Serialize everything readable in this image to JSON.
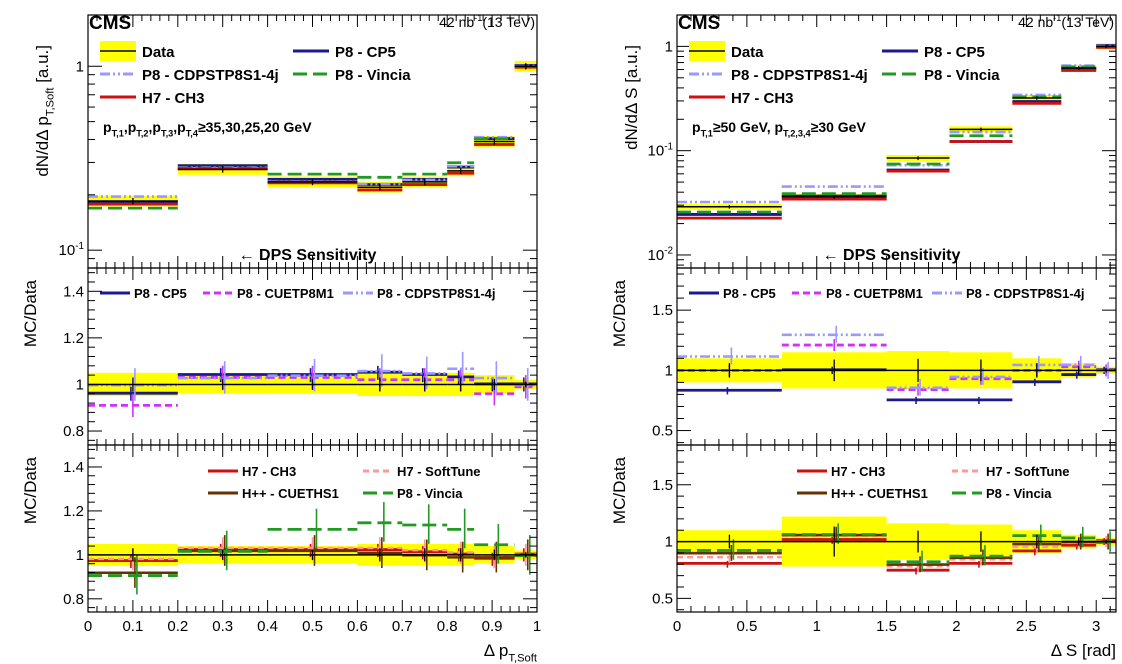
{
  "figure": {
    "colors": {
      "data_band": "#ffff00",
      "data_line": "#000000",
      "P8 - CP5": "#1a1a8c",
      "P8 - CUETP8M1": "#cc33ff",
      "P8 - CDPSTP8S1-4j": "#9999ff",
      "P8 - Vincia": "#229922",
      "H7 - CH3": "#cc1111",
      "H7 - SoftTune": "#ff9999",
      "H++ - CUETHS1": "#663300"
    }
  },
  "chart_data": [
    {
      "type": "step",
      "id": "left",
      "cms_label": "CMS",
      "lumi": "42 nb",
      "lumi_sup": "-1",
      "lumi_energy": "(13 TeV)",
      "selection_text": "p_{T,1},p_{T,2},p_{T,3},p_{T,4}≥35,30,25,20 GeV",
      "sensitivity_text": "← DPS Sensitivity",
      "xlabel": "Δ p_{T,Soft}",
      "xlim": [
        0,
        1
      ],
      "xticks": [
        "0",
        "0.1",
        "0.2",
        "0.3",
        "0.4",
        "0.5",
        "0.6",
        "0.7",
        "0.8",
        "0.9",
        "1"
      ],
      "bins": [
        0,
        0.2,
        0.4,
        0.6,
        0.7,
        0.8,
        0.86,
        0.95,
        1.0
      ],
      "main": {
        "ylabel": "dN/dΔ p_{T,Soft} [a.u.]",
        "yscale": "log",
        "ylim": [
          0.08,
          1.9
        ],
        "ytick_labels": [
          "10^{-1}",
          "1"
        ],
        "legend": [
          "Data",
          "P8 - CP5",
          "P8 - CDPSTP8S1-4j",
          "P8 - Vincia",
          "H7 - CH3"
        ],
        "series": [
          {
            "name": "Data",
            "values": [
              0.185,
              0.275,
              0.235,
              0.22,
              0.235,
              0.27,
              0.39,
              1.0
            ]
          },
          {
            "name": "P8 - CP5",
            "values": [
              0.18,
              0.285,
              0.24,
              0.225,
              0.24,
              0.28,
              0.4,
              1.0
            ]
          },
          {
            "name": "P8 - CDPSTP8S1-4j",
            "values": [
              0.195,
              0.28,
              0.235,
              0.228,
              0.24,
              0.285,
              0.41,
              1.0
            ]
          },
          {
            "name": "P8 - Vincia",
            "values": [
              0.17,
              0.28,
              0.26,
              0.25,
              0.26,
              0.3,
              0.405,
              1.0
            ]
          },
          {
            "name": "H7 - CH3",
            "values": [
              0.18,
              0.28,
              0.235,
              0.215,
              0.23,
              0.265,
              0.38,
              1.0
            ]
          }
        ]
      },
      "ratio1": {
        "ylabel": "MC/Data",
        "ylim": [
          0.74,
          1.5
        ],
        "ytick_labels": [
          "0.8",
          "1",
          "1.2",
          "1.4"
        ],
        "data_unc": [
          0.05,
          0.04,
          0.04,
          0.05,
          0.05,
          0.05,
          0.04,
          0.02
        ],
        "legend": [
          "P8 - CP5",
          "P8 - CUETP8M1",
          "P8 - CDPSTP8S1-4j"
        ],
        "series": [
          {
            "name": "P8 - CP5",
            "values": [
              0.96,
              1.04,
              1.04,
              1.05,
              1.04,
              1.03,
              1.0,
              1.0
            ]
          },
          {
            "name": "P8 - CUETP8M1",
            "values": [
              0.91,
              1.03,
              1.03,
              1.02,
              1.02,
              1.02,
              0.96,
              0.99
            ]
          },
          {
            "name": "P8 - CDPSTP8S1-4j",
            "values": [
              1.0,
              1.03,
              1.04,
              1.06,
              1.05,
              1.07,
              1.03,
              1.0
            ]
          }
        ]
      },
      "ratio2": {
        "ylabel": "MC/Data",
        "ylim": [
          0.74,
          1.5
        ],
        "ytick_labels": [
          "0.8",
          "1",
          "1.2",
          "1.4"
        ],
        "data_unc": [
          0.05,
          0.04,
          0.04,
          0.05,
          0.05,
          0.05,
          0.04,
          0.02
        ],
        "legend": [
          "H7 - CH3",
          "H7 - SoftTune",
          "H++ - CUETHS1",
          "P8 - Vincia"
        ],
        "series": [
          {
            "name": "H7 - CH3",
            "values": [
              0.97,
              1.02,
              1.02,
              1.02,
              1.01,
              1.0,
              0.98,
              1.0
            ]
          },
          {
            "name": "H7 - SoftTune",
            "values": [
              0.98,
              1.03,
              1.03,
              1.03,
              1.02,
              1.01,
              0.99,
              1.0
            ]
          },
          {
            "name": "H++ - CUETHS1",
            "values": [
              0.92,
              1.02,
              1.02,
              1.01,
              1.0,
              0.99,
              0.99,
              1.0
            ]
          },
          {
            "name": "P8 - Vincia",
            "values": [
              0.91,
              1.02,
              1.12,
              1.15,
              1.14,
              1.12,
              1.05,
              1.0
            ]
          }
        ]
      }
    },
    {
      "type": "step",
      "id": "right",
      "cms_label": "CMS",
      "lumi": "42 nb",
      "lumi_sup": "-1",
      "lumi_energy": "(13 TeV)",
      "selection_text": "p_{T,1}≥50 GeV, p_{T,2,3,4}≥30 GeV",
      "sensitivity_text": "← DPS Sensitivity",
      "xlabel": "Δ S [rad]",
      "xlim": [
        0,
        3.1416
      ],
      "xticks_values": [
        0,
        0.5,
        1,
        1.5,
        2,
        2.5,
        3
      ],
      "xticks": [
        "0",
        "0.5",
        "1",
        "1.5",
        "2",
        "2.5",
        "3"
      ],
      "bins": [
        0,
        0.75,
        1.5,
        1.95,
        2.4,
        2.75,
        3.0,
        3.1416
      ],
      "main": {
        "ylabel": "dN/dΔ S [a.u.]",
        "yscale": "log",
        "ylim": [
          0.0075,
          2.0
        ],
        "ytick_labels": [
          "10^{-2}",
          "10^{-1}",
          "1"
        ],
        "legend": [
          "Data",
          "P8 - CP5",
          "P8 - CDPSTP8S1-4j",
          "P8 - Vincia",
          "H7 - CH3"
        ],
        "series": [
          {
            "name": "Data",
            "values": [
              0.029,
              0.036,
              0.085,
              0.16,
              0.32,
              0.62,
              1.0
            ]
          },
          {
            "name": "P8 - CP5",
            "values": [
              0.024,
              0.036,
              0.064,
              0.12,
              0.29,
              0.6,
              1.0
            ]
          },
          {
            "name": "P8 - CDPSTP8S1-4j",
            "values": [
              0.032,
              0.045,
              0.072,
              0.15,
              0.34,
              0.65,
              1.0
            ]
          },
          {
            "name": "P8 - Vincia",
            "values": [
              0.026,
              0.039,
              0.075,
              0.14,
              0.33,
              0.64,
              1.0
            ]
          },
          {
            "name": "H7 - CH3",
            "values": [
              0.023,
              0.035,
              0.065,
              0.125,
              0.29,
              0.6,
              1.0
            ]
          }
        ]
      },
      "ratio1": {
        "ylabel": "MC/Data",
        "ylim": [
          0.38,
          1.85
        ],
        "ytick_labels": [
          "0.5",
          "1",
          "1.5"
        ],
        "data_unc": [
          0.1,
          0.15,
          0.16,
          0.15,
          0.1,
          0.06,
          0.03
        ],
        "legend": [
          "P8 - CP5",
          "P8 - CUETP8M1",
          "P8 - CDPSTP8S1-4j"
        ],
        "series": [
          {
            "name": "P8 - CP5",
            "values": [
              0.83,
              1.0,
              0.75,
              0.75,
              0.9,
              0.96,
              1.0
            ]
          },
          {
            "name": "P8 - CUETP8M1",
            "values": [
              1.0,
              1.21,
              0.84,
              0.93,
              1.0,
              1.03,
              1.0
            ]
          },
          {
            "name": "P8 - CDPSTP8S1-4j",
            "values": [
              1.12,
              1.3,
              0.86,
              0.95,
              1.05,
              1.05,
              1.0
            ]
          }
        ]
      },
      "ratio2": {
        "ylabel": "MC/Data",
        "ylim": [
          0.38,
          1.85
        ],
        "ytick_labels": [
          "0.5",
          "1",
          "1.5"
        ],
        "data_unc": [
          0.1,
          0.22,
          0.16,
          0.15,
          0.1,
          0.06,
          0.03
        ],
        "legend": [
          "H7 - CH3",
          "H7 - SoftTune",
          "H++ - CUETHS1",
          "P8 - Vincia"
        ],
        "series": [
          {
            "name": "H7 - CH3",
            "values": [
              0.8,
              1.01,
              0.74,
              0.8,
              0.91,
              0.96,
              1.0
            ]
          },
          {
            "name": "H7 - SoftTune",
            "values": [
              0.86,
              1.05,
              0.78,
              0.84,
              0.95,
              0.99,
              1.0
            ]
          },
          {
            "name": "H++ - CUETHS1",
            "values": [
              0.9,
              1.06,
              0.8,
              0.86,
              0.98,
              1.0,
              1.0
            ]
          },
          {
            "name": "P8 - Vincia",
            "values": [
              0.93,
              1.07,
              0.83,
              0.88,
              1.06,
              1.04,
              1.0
            ]
          }
        ]
      }
    }
  ]
}
